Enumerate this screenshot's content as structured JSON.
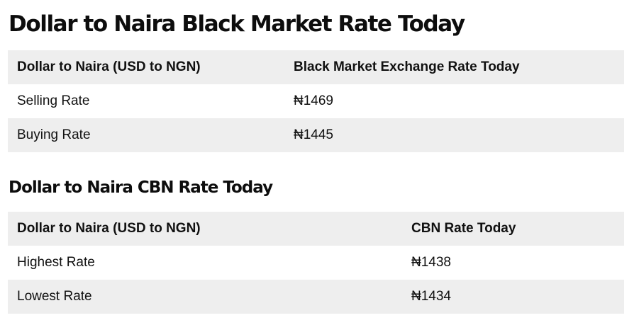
{
  "black_market": {
    "title": "Dollar to Naira Black Market Rate Today",
    "headers": [
      "Dollar to Naira (USD to NGN)",
      "Black Market Exchange Rate Today"
    ],
    "rows": [
      {
        "label": "Selling Rate",
        "value": "₦1469"
      },
      {
        "label": "Buying Rate",
        "value": "₦1445"
      }
    ]
  },
  "cbn": {
    "title": "Dollar to Naira CBN Rate Today",
    "headers": [
      "Dollar to Naira (USD to NGN)",
      "CBN Rate Today"
    ],
    "rows": [
      {
        "label": "Highest Rate",
        "value": "₦1438"
      },
      {
        "label": "Lowest Rate",
        "value": "₦1434"
      }
    ]
  },
  "colors": {
    "row_shade": "#eeeeee",
    "text": "#111111"
  }
}
